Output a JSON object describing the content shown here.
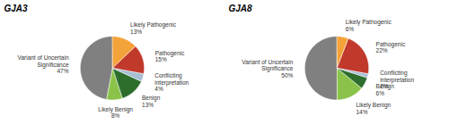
{
  "chart_data": [
    {
      "type": "pie",
      "title": "GJA3",
      "categories": [
        "Likely Pathogenic\n13%",
        "Pathogenic\n15%",
        "Conflicting\ninterpretation\n4%",
        "Benign\n13%",
        "Likely Benign\n8%",
        "Variant of Uncertain\nSignificance\n47%"
      ],
      "values": [
        13,
        15,
        4,
        13,
        8,
        47
      ],
      "colors": [
        "#f4a23a",
        "#c0392b",
        "#a8bfd4",
        "#2d6e2d",
        "#8bc34a",
        "#808080"
      ]
    },
    {
      "type": "pie",
      "title": "GJA8",
      "categories": [
        "Likely Pathogenic\n6%",
        "Pathogenic\n22%",
        "Conflicting\ninterpretation\n2%",
        "Benign\n6%",
        "Likely Benign\n14%",
        "Variant of Uncertain\nSignificance\n50%"
      ],
      "values": [
        6,
        22,
        2,
        6,
        14,
        50
      ],
      "colors": [
        "#f4a23a",
        "#c0392b",
        "#a8bfd4",
        "#2d6e2d",
        "#8bc34a",
        "#808080"
      ]
    }
  ]
}
